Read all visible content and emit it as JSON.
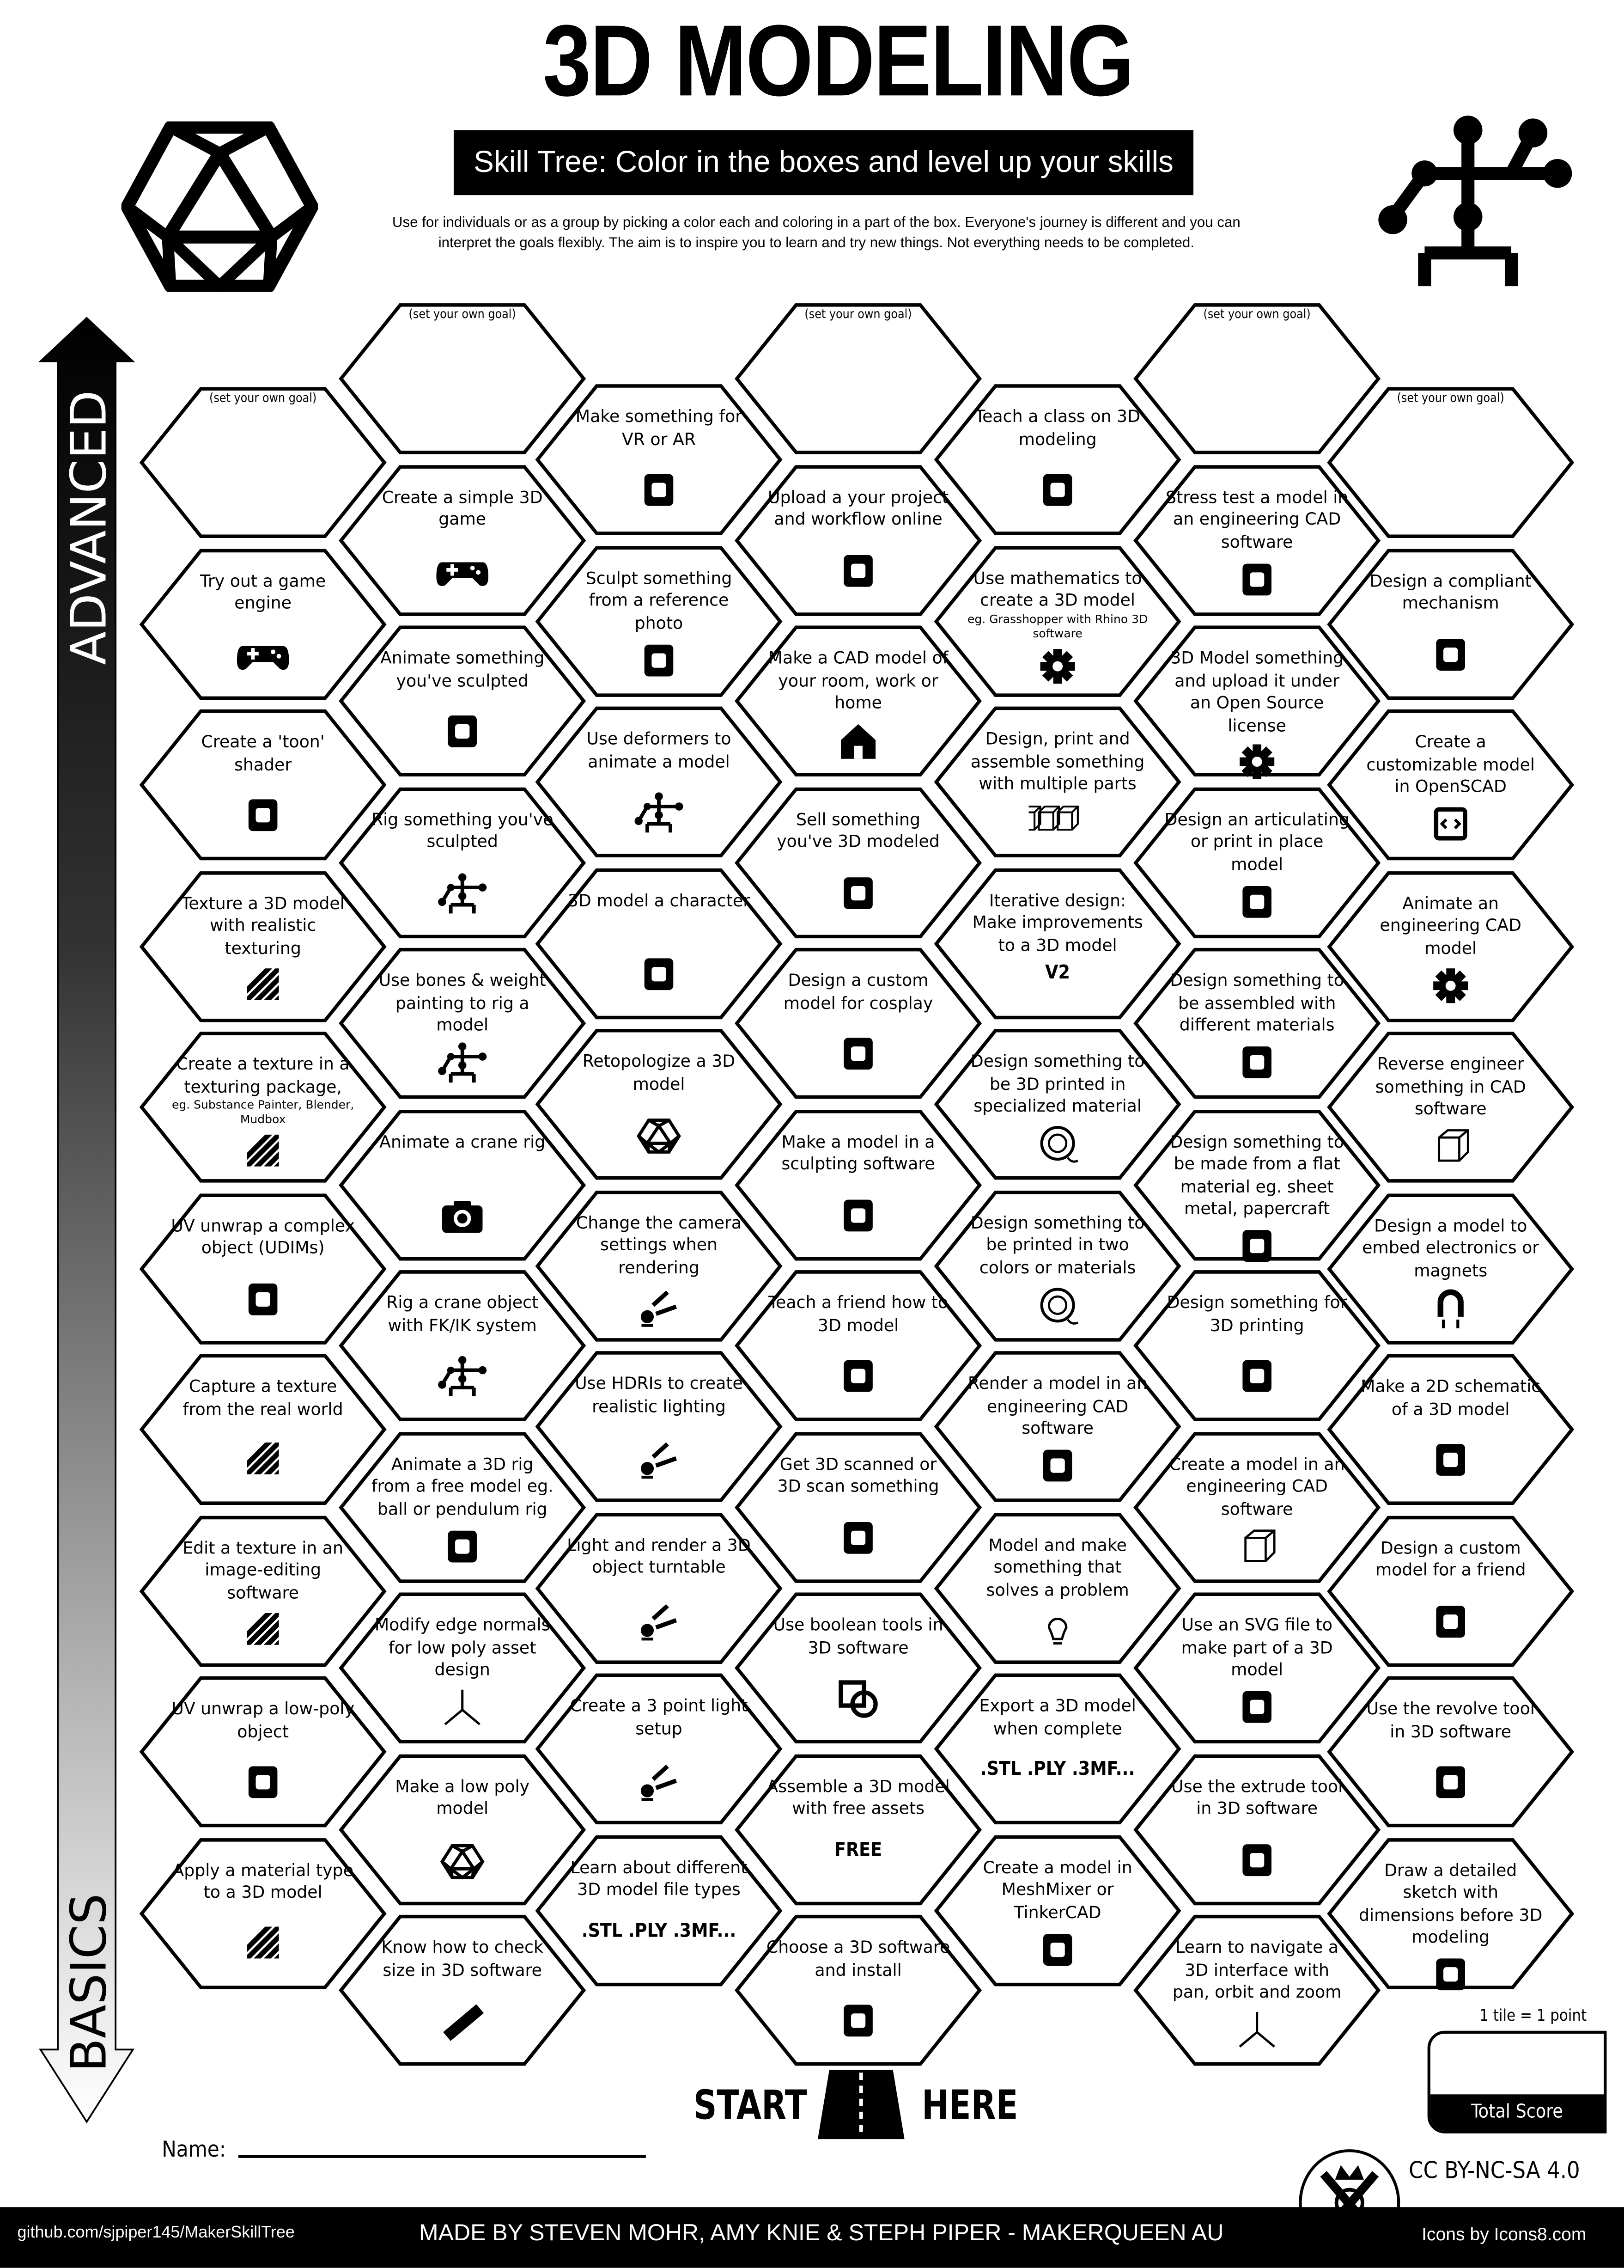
{
  "header": {
    "title": "3D MODELING",
    "banner": "Skill Tree:  Color in the boxes and level up your skills",
    "description_line1": "Use for individuals or as a group by picking a color each and coloring in a part of the box.  Everyone's journey is different and you can",
    "description_line2": "interpret the goals flexibly.  The aim is to inspire you to learn and try new things. Not everything needs to be completed."
  },
  "arrow": {
    "top_label": "ADVANCED",
    "bottom_label": "BASICS"
  },
  "columns": [
    [
      {
        "goal": "(set your own goal)"
      },
      {
        "text": "Try out a game engine",
        "icon": "gamepad-icon"
      },
      {
        "text": "Create a 'toon' shader",
        "icon": "toon-face-icon"
      },
      {
        "text": "Texture a 3D model with realistic texturing",
        "icon": "texture-hatch-icon"
      },
      {
        "text": "Create a texture in a texturing package,",
        "sub": "eg. Substance Painter, Blender, Mudbox",
        "icon": "texture-hatch-icon"
      },
      {
        "text": "UV unwrap a complex object (UDIMs)",
        "icon": "udim-layout-icon"
      },
      {
        "text": "Capture a texture from the real world",
        "icon": "texture-hatch-icon"
      },
      {
        "text": "Edit a texture in an image-editing software",
        "icon": "texture-hatch-icon"
      },
      {
        "text": "UV unwrap a low-poly object",
        "icon": "cube-unwrap-icon"
      },
      {
        "text": "Apply a material type to a 3D model",
        "icon": "texture-hatch-icon"
      }
    ],
    [
      {
        "goal": "(set your own goal)"
      },
      {
        "text": "Create a simple 3D game",
        "icon": "gamepad-icon"
      },
      {
        "text": "Animate something you've sculpted",
        "icon": "walking-person-icon"
      },
      {
        "text": "Rig something you've sculpted",
        "icon": "rig-skeleton-icon"
      },
      {
        "text": "Use bones & weight painting to rig a model",
        "icon": "rig-skeleton-icon"
      },
      {
        "text": "Animate a crane rig",
        "icon": "camera-icon"
      },
      {
        "text": "Rig a crane object with FK/IK system",
        "icon": "rig-skeleton-icon"
      },
      {
        "text": "Animate a 3D rig from a free model eg. ball or pendulum rig",
        "icon": "pendulum-icon"
      },
      {
        "text": "Modify edge normals for low poly asset design",
        "icon": "axis-gizmo-icon"
      },
      {
        "text": "Make a low poly model",
        "icon": "low-poly-icon"
      },
      {
        "text": "Know how to check size in 3D software",
        "icon": "ruler-icon"
      }
    ],
    [
      {
        "text": "Make something for VR or AR",
        "icon": "vr-headset-icon"
      },
      {
        "text": "Sculpt something from a reference photo",
        "icon": "dog-icon"
      },
      {
        "text": "Use deformers to animate a model",
        "icon": "rig-skeleton-icon"
      },
      {
        "text": "3D model a character",
        "icon": "toon-face-icon"
      },
      {
        "text": "Retopologize a 3D model",
        "icon": "low-poly-icon"
      },
      {
        "text": "Change the camera settings when rendering",
        "icon": "studio-light-icon"
      },
      {
        "text": "Use HDRIs to create realistic lighting",
        "icon": "studio-light-icon"
      },
      {
        "text": "Light and render a 3D object turntable",
        "icon": "studio-light-icon"
      },
      {
        "text": "Create a 3 point light setup",
        "icon": "studio-light-icon"
      },
      {
        "text": "Learn about different 3D model file types",
        "icon": "file-types-icon",
        "icon_text": ".STL .PLY .3MF..."
      }
    ],
    [
      {
        "goal": "(set your own goal)"
      },
      {
        "text": "Upload a your project and workflow online",
        "icon": "document-icon"
      },
      {
        "text": "Make a CAD model of your room, work or home",
        "icon": "house-icon"
      },
      {
        "text": "Sell something you've 3D modeled",
        "icon": "money-bag-icon"
      },
      {
        "text": "Design a custom model for cosplay",
        "icon": "cosplay-icon"
      },
      {
        "text": "Make a model in a sculpting software",
        "icon": "statue-icon"
      },
      {
        "text": "Teach a friend how to 3D model",
        "icon": "teaching-friends-icon"
      },
      {
        "text": "Get 3D scanned or 3D scan something",
        "icon": "body-scan-icon"
      },
      {
        "text": "Use boolean tools in 3D software",
        "icon": "boolean-shapes-icon"
      },
      {
        "text": "Assemble a 3D model with free assets",
        "icon": "free-tag-icon",
        "icon_text": "FREE"
      },
      {
        "text": "Choose a 3D software and install",
        "icon": "sparkle-file-icon"
      }
    ],
    [
      {
        "text": "Teach a class on 3D modeling",
        "icon": "teacher-board-icon"
      },
      {
        "text": "Use mathematics to create a 3D model",
        "sub": "eg. Grasshopper with Rhino 3D software",
        "icon": "fractal-icon"
      },
      {
        "text": "Design, print and assemble something with multiple parts",
        "icon": "three-cubes-icon"
      },
      {
        "text": "Iterative design:  Make improvements to a 3D model",
        "icon": "version-file-icon",
        "icon_text": "V2"
      },
      {
        "text": "Design something to be 3D printed in specialized material",
        "icon": "filament-spool-icon"
      },
      {
        "text": "Design something to be printed in two colors or materials",
        "icon": "filament-spool-icon"
      },
      {
        "text": "Render a model in an engineering CAD software",
        "icon": "sparkle-file-icon"
      },
      {
        "text": "Model and make something that solves a problem",
        "icon": "lightbulb-icon"
      },
      {
        "text": "Export a 3D model when complete",
        "icon": "file-types-icon",
        "icon_text": ".STL .PLY .3MF..."
      },
      {
        "text": "Create a model in MeshMixer or TinkerCAD",
        "icon": "rabbit-icon"
      }
    ],
    [
      {
        "goal": "(set your own goal)"
      },
      {
        "text": "Stress test a model in an engineering CAD software",
        "icon": "stress-cube-icon"
      },
      {
        "text": "3D Model something and upload it under an Open Source license",
        "icon": "open-source-icon"
      },
      {
        "text": "Design an articulating or print in place model",
        "icon": "dragon-icon"
      },
      {
        "text": "Design something to be assembled with different materials",
        "icon": "tools-icon"
      },
      {
        "text": "Design something to be made from a flat material eg. sheet metal, papercraft",
        "icon": "sheet-metal-icon"
      },
      {
        "text": "Design something for 3D printing",
        "icon": "3d-printer-icon"
      },
      {
        "text": "Create a model in an engineering CAD software",
        "icon": "cube-icon"
      },
      {
        "text": "Use an SVG file to make part of a 3D model",
        "icon": "pen-tool-icon"
      },
      {
        "text": "Use the extrude tool in 3D software",
        "icon": "extrude-cube-icon"
      },
      {
        "text": "Learn to navigate a 3D interface with pan, orbit and zoom",
        "icon": "axis-gizmo-icon"
      }
    ],
    [
      {
        "goal": "(set your own goal)"
      },
      {
        "text": "Design a compliant mechanism",
        "icon": "brain-icon"
      },
      {
        "text": "Create a customizable model in OpenSCAD",
        "icon": "code-window-icon"
      },
      {
        "text": "Animate an engineering CAD model",
        "icon": "gears-icon"
      },
      {
        "text": "Reverse engineer something in CAD software",
        "icon": "cube-icon"
      },
      {
        "text": "Design a model to embed electronics or magnets",
        "icon": "magnet-icon"
      },
      {
        "text": "Make a 2D schematic of a 3D model",
        "icon": "sketch-icon"
      },
      {
        "text": "Design a custom model for a friend",
        "icon": "gift-bow-icon"
      },
      {
        "text": "Use the revolve tool in 3D software",
        "icon": "vase-icon"
      },
      {
        "text": "Draw a detailed sketch with dimensions before 3D modeling",
        "icon": "sketch-icon"
      }
    ]
  ],
  "start": {
    "left": "START",
    "right": "HERE"
  },
  "name_label": "Name:",
  "score": {
    "note": "1 tile = 1 point",
    "label": "Total Score"
  },
  "license": "CC BY-NC-SA 4.0",
  "footer": {
    "github": "github.com/sjpiper145/MakerSkillTree",
    "credits": "MADE BY STEVEN MOHR, AMY KNIE & STEPH PIPER  -  MAKERQUEEN AU",
    "icons": "Icons by Icons8.com"
  }
}
